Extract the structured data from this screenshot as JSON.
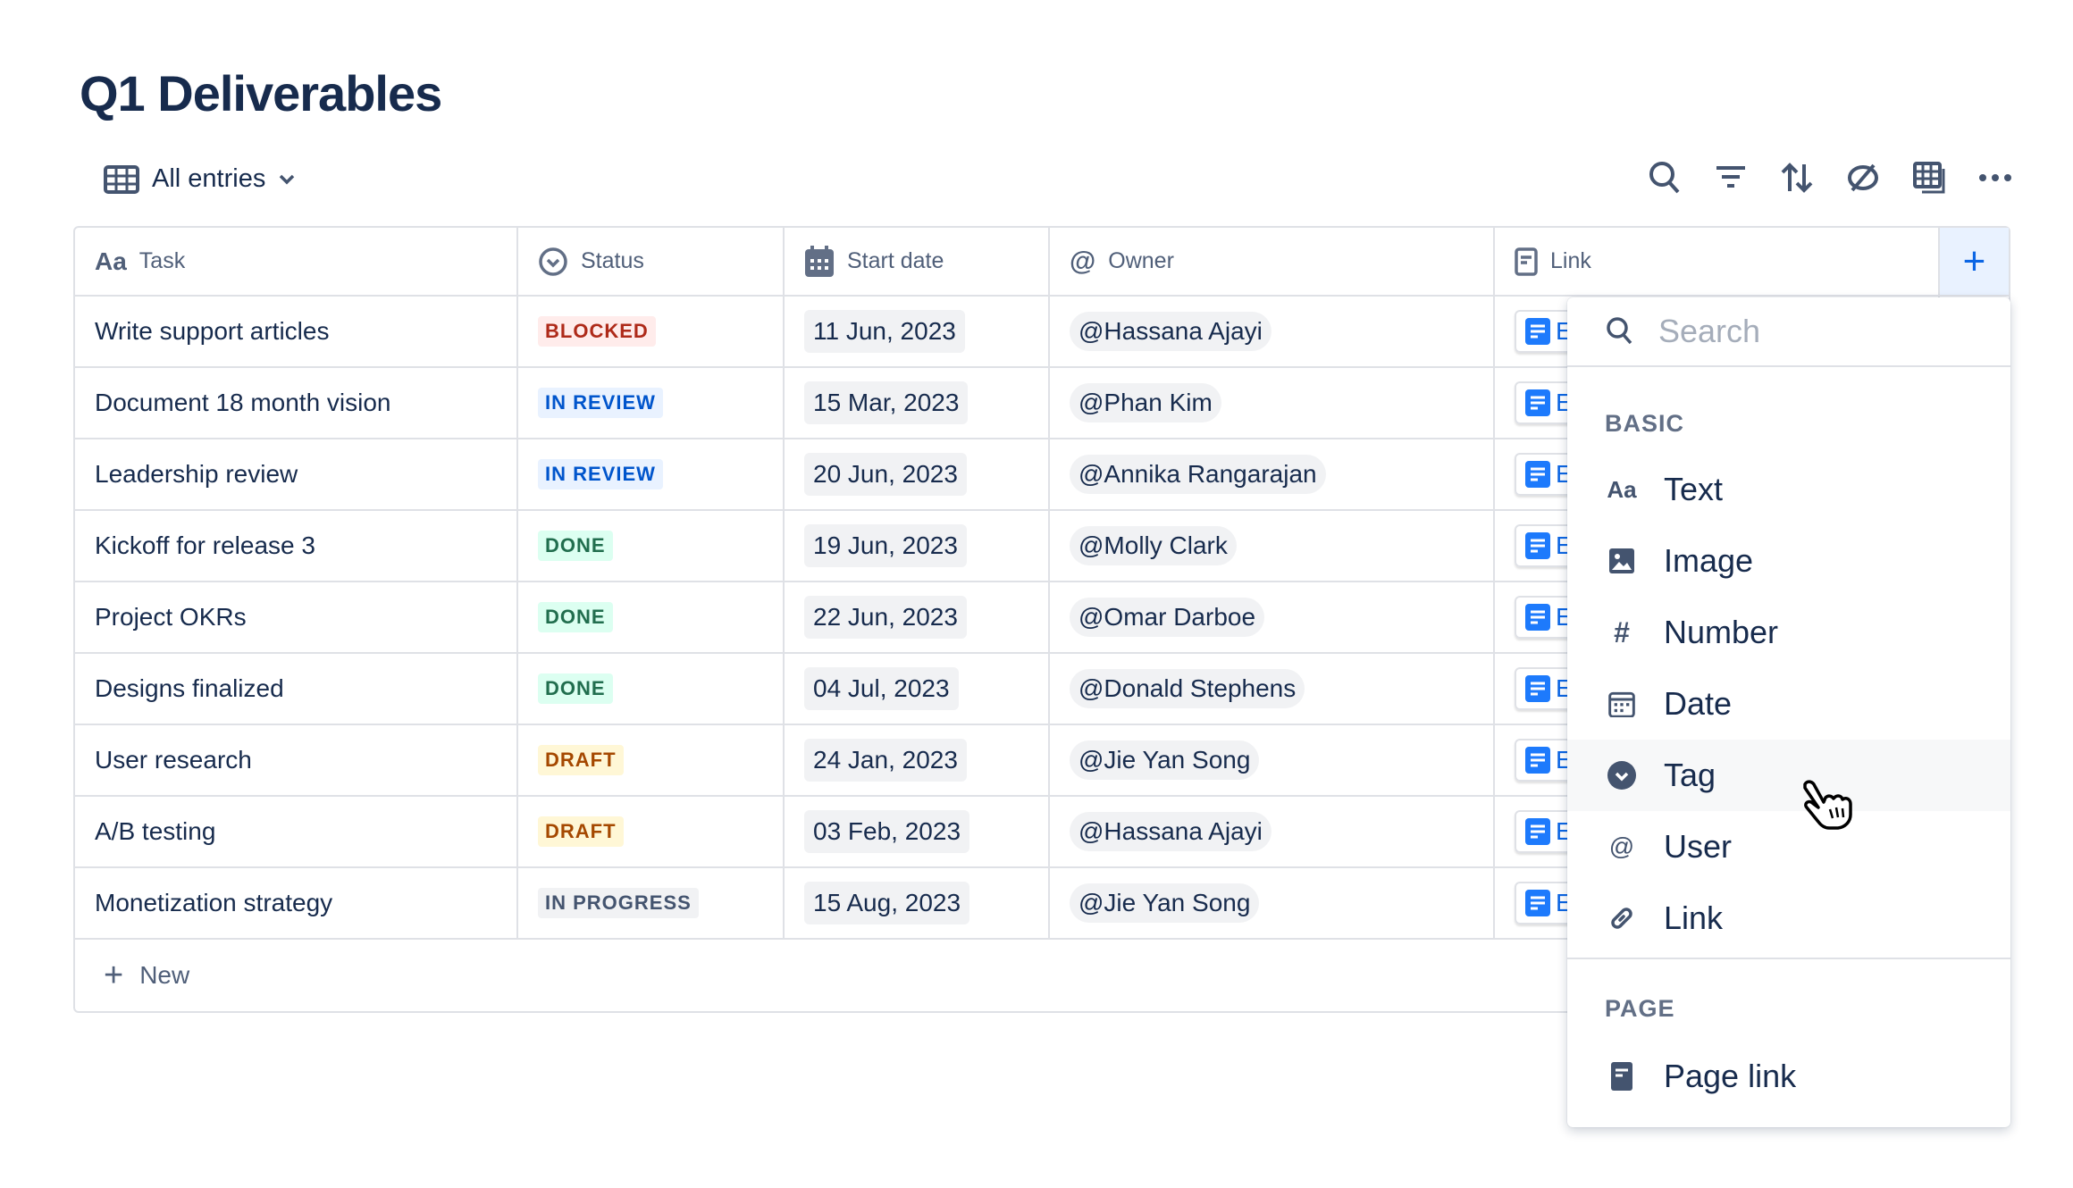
{
  "title": "Q1 Deliverables",
  "view": {
    "label": "All entries",
    "icon": "table-icon"
  },
  "toolbar": [
    "search-icon",
    "filter-icon",
    "sort-icon",
    "hide-icon",
    "table-layout-icon",
    "more-icon"
  ],
  "columns": [
    {
      "label": "Task",
      "icon": "Aa"
    },
    {
      "label": "Status"
    },
    {
      "label": "Start date"
    },
    {
      "label": "Owner"
    },
    {
      "label": "Link"
    }
  ],
  "add_column": "+",
  "rows": [
    {
      "task": "Write support articles",
      "status": "BLOCKED",
      "date": "11 Jun, 2023",
      "owner": "@Hassana Ajayi",
      "link": "E"
    },
    {
      "task": "Document 18 month vision",
      "status": "IN REVIEW",
      "date": "15 Mar, 2023",
      "owner": "@Phan Kim",
      "link": "E"
    },
    {
      "task": "Leadership review",
      "status": "IN REVIEW",
      "date": "20 Jun, 2023",
      "owner": "@Annika Rangarajan",
      "link": "E"
    },
    {
      "task": "Kickoff for release 3",
      "status": "DONE",
      "date": "19 Jun, 2023",
      "owner": "@Molly Clark",
      "link": "E"
    },
    {
      "task": "Project OKRs",
      "status": "DONE",
      "date": "22 Jun, 2023",
      "owner": "@Omar Darboe",
      "link": "E"
    },
    {
      "task": "Designs finalized",
      "status": "DONE",
      "date": "04 Jul, 2023",
      "owner": "@Donald Stephens",
      "link": "E"
    },
    {
      "task": "User research",
      "status": "DRAFT",
      "date": "24 Jan, 2023",
      "owner": "@Jie Yan Song",
      "link": "E"
    },
    {
      "task": "A/B testing",
      "status": "DRAFT",
      "date": "03 Feb, 2023",
      "owner": "@Hassana Ajayi",
      "link": "E"
    },
    {
      "task": "Monetization strategy",
      "status": "IN PROGRESS",
      "date": "15 Aug, 2023",
      "owner": "@Jie Yan Song",
      "link": "E"
    }
  ],
  "status_colors": {
    "BLOCKED": [
      "#FFECEB",
      "#AE2A19"
    ],
    "IN REVIEW": [
      "#E9F2FF",
      "#0055CC"
    ],
    "DONE": [
      "#DCFFF1",
      "#216E4E"
    ],
    "DRAFT": [
      "#FFF7D6",
      "#A54800"
    ],
    "IN PROGRESS": [
      "#F1F2F4",
      "#44546F"
    ]
  },
  "new_label": "New",
  "menu": {
    "search_placeholder": "Search",
    "basic_label": "BASIC",
    "basic": [
      {
        "label": "Text",
        "icon": "Aa"
      },
      {
        "label": "Image"
      },
      {
        "label": "Number",
        "icon": "#"
      },
      {
        "label": "Date"
      },
      {
        "label": "Tag"
      },
      {
        "label": "User",
        "icon": "@"
      },
      {
        "label": "Link"
      }
    ],
    "page_label": "PAGE",
    "page": [
      {
        "label": "Page link"
      }
    ],
    "highlighted": "Tag"
  }
}
